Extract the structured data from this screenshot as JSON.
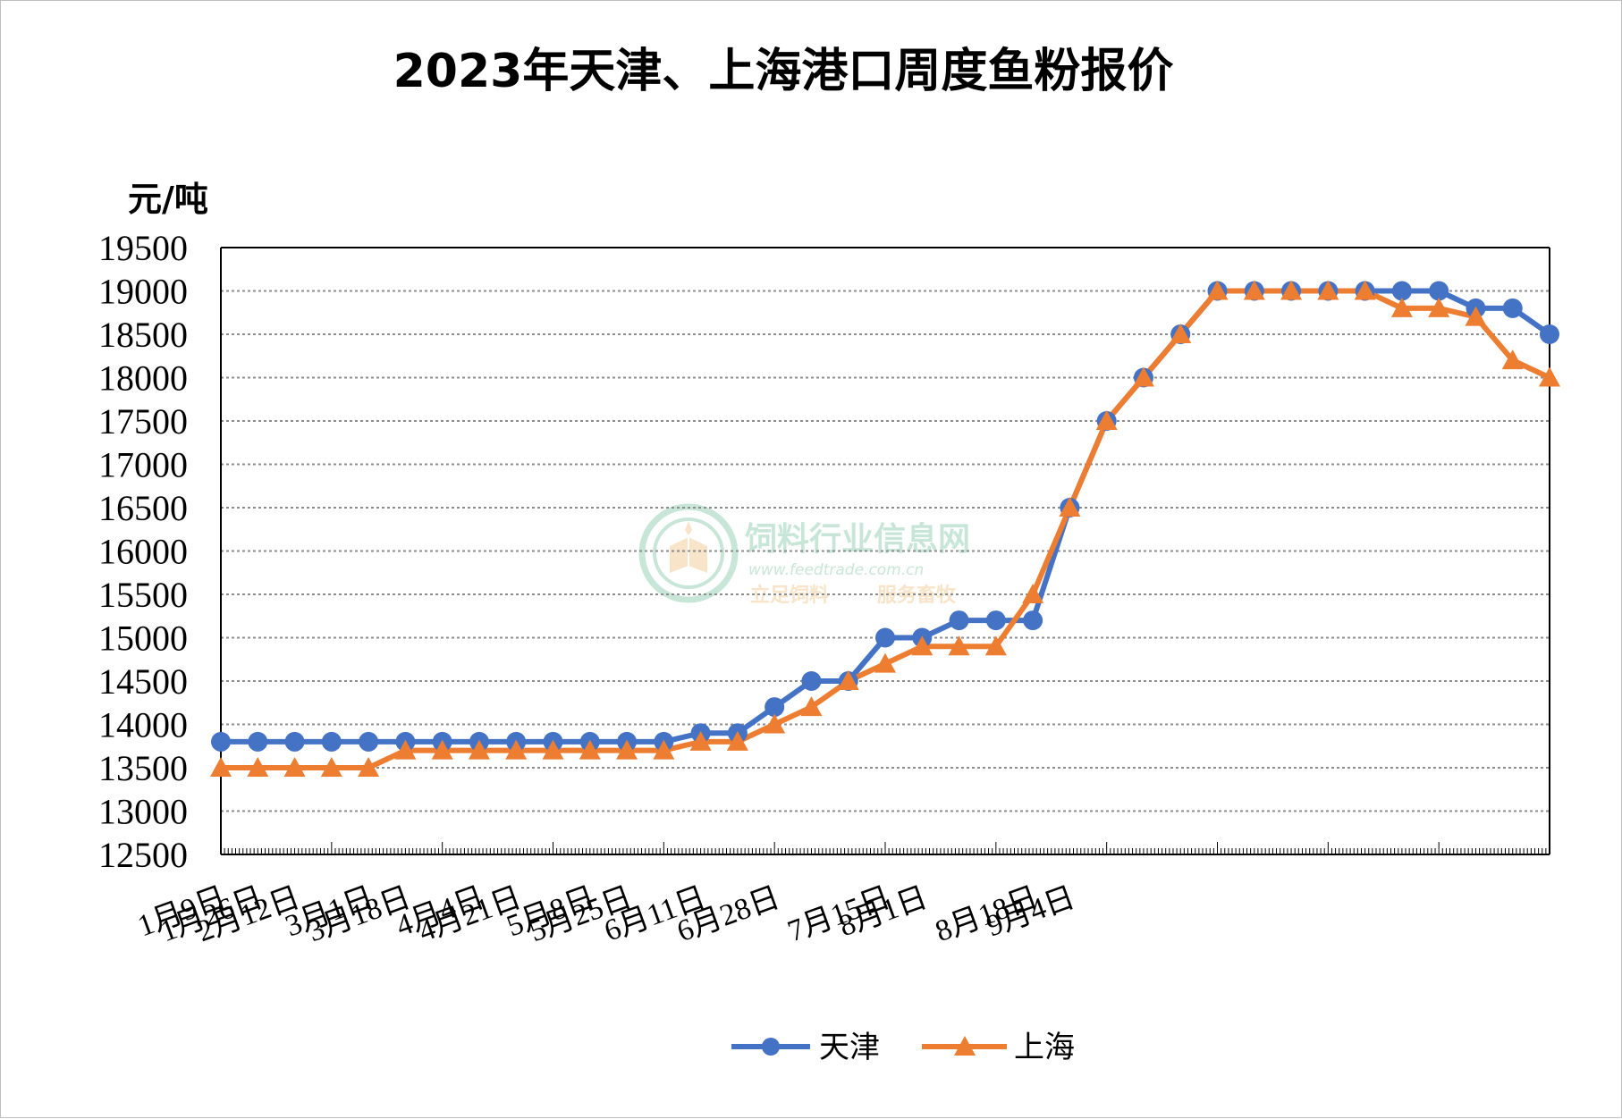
{
  "chart_data": {
    "type": "line",
    "title": "2023年天津、上海港口周度鱼粉报价",
    "ylabel": "元/吨",
    "ylim": [
      12500,
      19500
    ],
    "yticks": [
      12500,
      13000,
      13500,
      14000,
      14500,
      15000,
      15500,
      16000,
      16500,
      17000,
      17500,
      18000,
      18500,
      19000,
      19500
    ],
    "grid": true,
    "legend_position": "bottom",
    "xtick_labels": [
      "1月9日",
      "1月26日",
      "2月12日",
      "3月1日",
      "3月18日",
      "4月4日",
      "4月21日",
      "5月8日",
      "5月25日",
      "6月11日",
      "6月28日",
      "7月15日",
      "8月1日",
      "8月18日",
      "9月4日"
    ],
    "xtick_positions": [
      0,
      1,
      2,
      4,
      5,
      7,
      8,
      10,
      11,
      13,
      15,
      18,
      19,
      22,
      23
    ],
    "series": [
      {
        "name": "天津",
        "color": "#4472C4",
        "marker": "circle",
        "values": [
          13800,
          13800,
          13800,
          13800,
          13800,
          13800,
          13800,
          13800,
          13800,
          13800,
          13800,
          13800,
          13800,
          13900,
          13900,
          14200,
          14500,
          14500,
          15000,
          15000,
          15200,
          15200,
          15200,
          16500,
          17500,
          18000,
          18500,
          19000,
          19000,
          19000,
          19000,
          19000,
          19000,
          19000,
          18800,
          18800,
          18500
        ]
      },
      {
        "name": "上海",
        "color": "#ED7D31",
        "marker": "triangle",
        "values": [
          13500,
          13500,
          13500,
          13500,
          13500,
          13700,
          13700,
          13700,
          13700,
          13700,
          13700,
          13700,
          13700,
          13800,
          13800,
          14000,
          14200,
          14500,
          14700,
          14900,
          14900,
          14900,
          15500,
          16500,
          17500,
          18000,
          18500,
          19000,
          19000,
          19000,
          19000,
          19000,
          18800,
          18800,
          18700,
          18200,
          18000
        ]
      }
    ]
  },
  "watermark": {
    "name": "饲料行业信息网",
    "url": "www.feedtrade.com.cn",
    "slogan_left": "立足饲料",
    "slogan_right": "服务畜牧",
    "icon": "leaf-book-logo"
  }
}
